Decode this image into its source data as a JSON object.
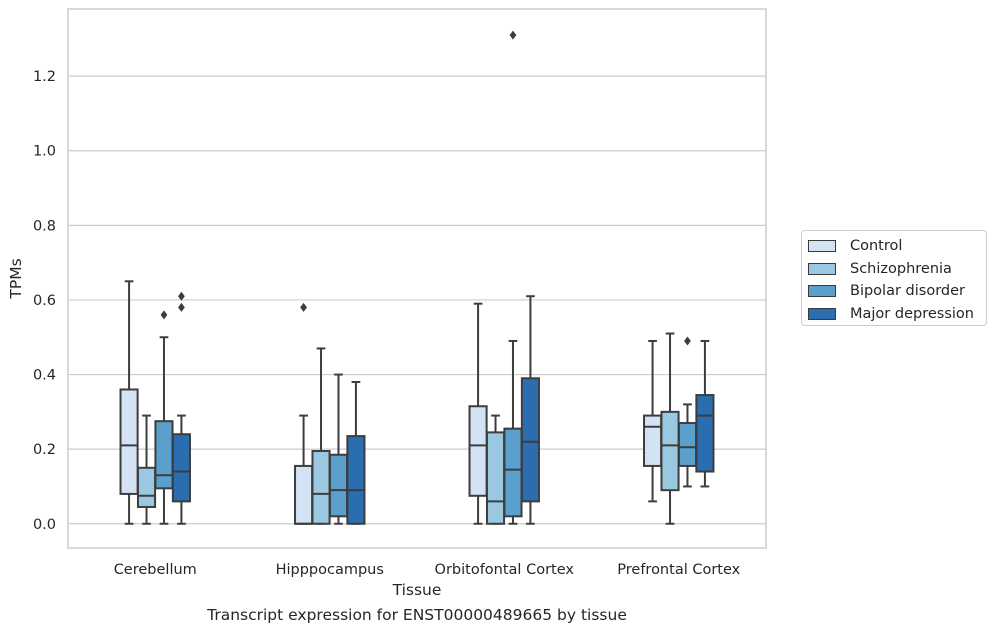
{
  "chart_data": {
    "type": "box",
    "xlabel": "Tissue",
    "ylabel": "TPMs",
    "ylim": [
      -0.065,
      1.38
    ],
    "yticks": [
      "0.0",
      "0.2",
      "0.4",
      "0.6",
      "0.8",
      "1.0",
      "1.2"
    ],
    "categories": [
      "Cerebellum",
      "Hipppocampus",
      "Orbitofontal Cortex",
      "Prefrontal Cortex"
    ],
    "grid": "horizontal",
    "legend_position": "right",
    "series": [
      {
        "name": "Control",
        "color": "#d3e3f3",
        "boxes": [
          {
            "whislo": 0.0,
            "q1": 0.08,
            "median": 0.21,
            "q3": 0.36,
            "whishi": 0.65,
            "fliers": []
          },
          {
            "whislo": 0.0,
            "q1": 0.0,
            "median": 0.0,
            "q3": 0.155,
            "whishi": 0.29,
            "fliers": [
              0.58
            ]
          },
          {
            "whislo": 0.0,
            "q1": 0.075,
            "median": 0.21,
            "q3": 0.315,
            "whishi": 0.59,
            "fliers": []
          },
          {
            "whislo": 0.06,
            "q1": 0.155,
            "median": 0.26,
            "q3": 0.29,
            "whishi": 0.49,
            "fliers": []
          }
        ]
      },
      {
        "name": "Schizophrenia",
        "color": "#9ac8e0",
        "boxes": [
          {
            "whislo": 0.0,
            "q1": 0.045,
            "median": 0.075,
            "q3": 0.15,
            "whishi": 0.29,
            "fliers": []
          },
          {
            "whislo": 0.0,
            "q1": 0.0,
            "median": 0.08,
            "q3": 0.195,
            "whishi": 0.47,
            "fliers": []
          },
          {
            "whislo": 0.0,
            "q1": 0.0,
            "median": 0.06,
            "q3": 0.245,
            "whishi": 0.29,
            "fliers": []
          },
          {
            "whislo": 0.0,
            "q1": 0.09,
            "median": 0.21,
            "q3": 0.3,
            "whishi": 0.51,
            "fliers": []
          }
        ]
      },
      {
        "name": "Bipolar disorder",
        "color": "#5b9fcd",
        "boxes": [
          {
            "whislo": 0.0,
            "q1": 0.095,
            "median": 0.13,
            "q3": 0.275,
            "whishi": 0.5,
            "fliers": [
              0.56
            ]
          },
          {
            "whislo": 0.0,
            "q1": 0.02,
            "median": 0.09,
            "q3": 0.185,
            "whishi": 0.4,
            "fliers": []
          },
          {
            "whislo": 0.0,
            "q1": 0.02,
            "median": 0.145,
            "q3": 0.255,
            "whishi": 0.49,
            "fliers": [
              1.31
            ]
          },
          {
            "whislo": 0.1,
            "q1": 0.155,
            "median": 0.205,
            "q3": 0.27,
            "whishi": 0.32,
            "fliers": [
              0.49
            ]
          }
        ]
      },
      {
        "name": "Major depression",
        "color": "#2a6db0",
        "boxes": [
          {
            "whislo": 0.0,
            "q1": 0.06,
            "median": 0.14,
            "q3": 0.24,
            "whishi": 0.29,
            "fliers": [
              0.58,
              0.61
            ]
          },
          {
            "whislo": 0.0,
            "q1": 0.0,
            "median": 0.09,
            "q3": 0.235,
            "whishi": 0.38,
            "fliers": []
          },
          {
            "whislo": 0.0,
            "q1": 0.06,
            "median": 0.22,
            "q3": 0.39,
            "whishi": 0.61,
            "fliers": []
          },
          {
            "whislo": 0.1,
            "q1": 0.14,
            "median": 0.29,
            "q3": 0.345,
            "whishi": 0.49,
            "fliers": []
          }
        ]
      }
    ]
  },
  "caption": "Transcript expression for ENST00000489665 by tissue"
}
